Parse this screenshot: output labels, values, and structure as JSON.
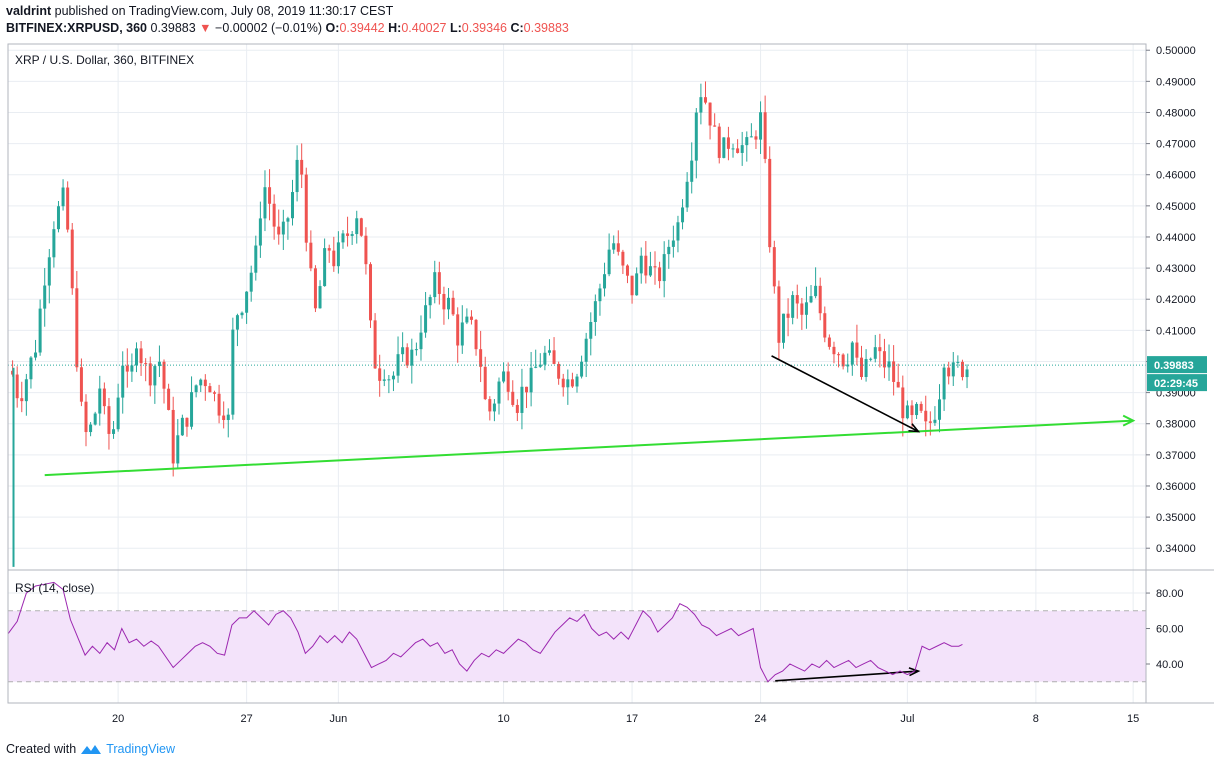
{
  "header": {
    "user": "valdrint",
    "published_text": "published on TradingView.com, July 08, 2019 11:30:17 CEST",
    "symbol_line": "BITFINEX:XRPUSD, 360",
    "last": "0.39883",
    "change": "−0.00002 (−0.01%)",
    "o_label": "O:",
    "o_val": "0.39442",
    "h_label": "H:",
    "h_val": "0.40027",
    "l_label": "L:",
    "l_val": "0.39346",
    "c_label": "C:",
    "c_val": "0.39883"
  },
  "footer": {
    "created_with": "Created with",
    "brand": "TradingView"
  },
  "chart_data": [
    {
      "type": "candlestick",
      "title": "XRP / U.S. Dollar, 360, BITFINEX",
      "y_ticks": [
        "0.50000",
        "0.49000",
        "0.48000",
        "0.47000",
        "0.46000",
        "0.45000",
        "0.44000",
        "0.43000",
        "0.42000",
        "0.41000",
        "0.40000",
        "0.39000",
        "0.38000",
        "0.37000",
        "0.36000",
        "0.35000",
        "0.34000"
      ],
      "ylim": [
        0.333,
        0.502
      ],
      "x_ticks": [
        "20",
        "27",
        "Jun",
        "10",
        "17",
        "24",
        "Jul",
        "8",
        "15"
      ],
      "last_price_label": "0.39883",
      "countdown_label": "02:29:45",
      "last_price": 0.39883,
      "colors": {
        "up": "#26a69a",
        "down": "#ef5350",
        "support": "#33dd33",
        "arrow": "#000000",
        "grid": "#e9edf2"
      },
      "close_path": [
        [
          14.2,
          0.397
        ],
        [
          14.6,
          0.388
        ],
        [
          15.0,
          0.395
        ],
        [
          15.5,
          0.405
        ],
        [
          16.0,
          0.428
        ],
        [
          16.5,
          0.445
        ],
        [
          17.0,
          0.452
        ],
        [
          17.3,
          0.44
        ],
        [
          17.6,
          0.412
        ],
        [
          18.0,
          0.384
        ],
        [
          18.3,
          0.375
        ],
        [
          18.7,
          0.382
        ],
        [
          19.0,
          0.392
        ],
        [
          19.4,
          0.376
        ],
        [
          19.8,
          0.379
        ],
        [
          20.2,
          0.402
        ],
        [
          20.6,
          0.39
        ],
        [
          21.0,
          0.408
        ],
        [
          21.4,
          0.398
        ],
        [
          21.8,
          0.396
        ],
        [
          22.2,
          0.402
        ],
        [
          22.6,
          0.388
        ],
        [
          23.0,
          0.37
        ],
        [
          23.4,
          0.378
        ],
        [
          23.8,
          0.383
        ],
        [
          24.2,
          0.392
        ],
        [
          24.6,
          0.395
        ],
        [
          25.0,
          0.393
        ],
        [
          25.4,
          0.386
        ],
        [
          25.8,
          0.385
        ],
        [
          26.0,
          0.381
        ],
        [
          26.3,
          0.414
        ],
        [
          26.7,
          0.418
        ],
        [
          27.1,
          0.426
        ],
        [
          27.5,
          0.434
        ],
        [
          27.9,
          0.458
        ],
        [
          28.3,
          0.45
        ],
        [
          28.7,
          0.438
        ],
        [
          29.1,
          0.442
        ],
        [
          29.5,
          0.454
        ],
        [
          29.9,
          0.468
        ],
        [
          30.3,
          0.438
        ],
        [
          30.7,
          0.414
        ],
        [
          31.0,
          0.424
        ],
        [
          31.4,
          0.438
        ],
        [
          31.8,
          0.432
        ],
        [
          32.2,
          0.438
        ],
        [
          32.6,
          0.442
        ],
        [
          33.0,
          0.448
        ],
        [
          33.4,
          0.438
        ],
        [
          33.7,
          0.412
        ],
        [
          34.1,
          0.396
        ],
        [
          34.5,
          0.398
        ],
        [
          34.9,
          0.394
        ],
        [
          35.3,
          0.4
        ],
        [
          35.7,
          0.402
        ],
        [
          36.1,
          0.402
        ],
        [
          36.5,
          0.412
        ],
        [
          36.9,
          0.418
        ],
        [
          37.3,
          0.426
        ],
        [
          37.7,
          0.42
        ],
        [
          38.1,
          0.418
        ],
        [
          38.5,
          0.408
        ],
        [
          38.9,
          0.412
        ],
        [
          39.3,
          0.41
        ],
        [
          39.7,
          0.402
        ],
        [
          40.1,
          0.382
        ],
        [
          40.5,
          0.388
        ],
        [
          40.9,
          0.396
        ],
        [
          41.3,
          0.394
        ],
        [
          41.7,
          0.386
        ],
        [
          42.1,
          0.392
        ],
        [
          42.5,
          0.394
        ],
        [
          42.9,
          0.4
        ],
        [
          43.3,
          0.402
        ],
        [
          43.7,
          0.398
        ],
        [
          44.1,
          0.396
        ],
        [
          44.5,
          0.394
        ],
        [
          44.9,
          0.396
        ],
        [
          45.3,
          0.404
        ],
        [
          45.7,
          0.412
        ],
        [
          46.1,
          0.42
        ],
        [
          46.5,
          0.43
        ],
        [
          46.9,
          0.44
        ],
        [
          47.3,
          0.432
        ],
        [
          47.7,
          0.426
        ],
        [
          48.1,
          0.422
        ],
        [
          48.5,
          0.434
        ],
        [
          48.9,
          0.43
        ],
        [
          49.3,
          0.426
        ],
        [
          49.7,
          0.43
        ],
        [
          50.1,
          0.44
        ],
        [
          50.5,
          0.444
        ],
        [
          50.9,
          0.458
        ],
        [
          51.3,
          0.47
        ],
        [
          51.6,
          0.488
        ],
        [
          51.9,
          0.486
        ],
        [
          52.2,
          0.48
        ],
        [
          52.6,
          0.47
        ],
        [
          53.0,
          0.468
        ],
        [
          53.4,
          0.472
        ],
        [
          53.8,
          0.47
        ],
        [
          54.2,
          0.468
        ],
        [
          54.6,
          0.472
        ],
        [
          55.0,
          0.478
        ],
        [
          55.3,
          0.458
        ],
        [
          55.6,
          0.43
        ],
        [
          56.0,
          0.408
        ],
        [
          56.4,
          0.414
        ],
        [
          56.8,
          0.42
        ],
        [
          57.2,
          0.414
        ],
        [
          57.6,
          0.418
        ],
        [
          58.0,
          0.422
        ],
        [
          58.4,
          0.412
        ],
        [
          58.8,
          0.406
        ],
        [
          59.2,
          0.404
        ],
        [
          59.6,
          0.4
        ],
        [
          60.0,
          0.406
        ],
        [
          60.4,
          0.394
        ],
        [
          60.8,
          0.398
        ],
        [
          61.2,
          0.404
        ],
        [
          61.6,
          0.4
        ],
        [
          62.0,
          0.398
        ],
        [
          62.4,
          0.392
        ],
        [
          62.8,
          0.384
        ],
        [
          63.2,
          0.38
        ],
        [
          63.6,
          0.384
        ],
        [
          64.0,
          0.378
        ],
        [
          64.4,
          0.382
        ],
        [
          64.8,
          0.392
        ],
        [
          65.0,
          0.402
        ],
        [
          65.4,
          0.396
        ],
        [
          65.8,
          0.398
        ],
        [
          66.2,
          0.398
        ],
        [
          66.4,
          0.399
        ]
      ],
      "support_line": {
        "from": [
          16.0,
          0.3635
        ],
        "to": [
          66.0,
          0.378
        ],
        "extend_to": [
          75.3,
          0.381
        ]
      },
      "divergence_arrow": {
        "from": [
          55.6,
          0.4018
        ],
        "to": [
          63.6,
          0.3775
        ]
      },
      "annotations": []
    },
    {
      "type": "line",
      "title": "RSI (14, close)",
      "y_ticks": [
        "80.00",
        "60.00",
        "40.00"
      ],
      "ylim": [
        18,
        93
      ],
      "band": [
        30,
        70
      ],
      "colors": {
        "line": "#9c27b0",
        "band": "#f3e3fa",
        "band_edge": "#b0b0b0"
      },
      "values_path": [
        [
          14.0,
          57
        ],
        [
          14.5,
          64
        ],
        [
          15.0,
          80
        ],
        [
          15.5,
          84
        ],
        [
          16.0,
          85
        ],
        [
          16.5,
          86
        ],
        [
          17.0,
          82
        ],
        [
          17.4,
          65
        ],
        [
          17.8,
          55
        ],
        [
          18.2,
          45
        ],
        [
          18.6,
          50
        ],
        [
          19.0,
          46
        ],
        [
          19.4,
          52
        ],
        [
          19.8,
          48
        ],
        [
          20.2,
          60
        ],
        [
          20.6,
          52
        ],
        [
          21.0,
          54
        ],
        [
          21.4,
          50
        ],
        [
          21.8,
          53
        ],
        [
          22.2,
          50
        ],
        [
          22.6,
          44
        ],
        [
          23.0,
          38
        ],
        [
          23.4,
          42
        ],
        [
          23.8,
          46
        ],
        [
          24.2,
          50
        ],
        [
          24.6,
          52
        ],
        [
          25.0,
          50
        ],
        [
          25.4,
          46
        ],
        [
          25.8,
          45
        ],
        [
          26.2,
          62
        ],
        [
          26.6,
          66
        ],
        [
          27.0,
          66
        ],
        [
          27.4,
          70
        ],
        [
          27.8,
          66
        ],
        [
          28.2,
          62
        ],
        [
          28.6,
          68
        ],
        [
          29.0,
          70
        ],
        [
          29.4,
          66
        ],
        [
          29.8,
          58
        ],
        [
          30.2,
          46
        ],
        [
          30.6,
          50
        ],
        [
          31.0,
          56
        ],
        [
          31.4,
          52
        ],
        [
          31.8,
          56
        ],
        [
          32.2,
          52
        ],
        [
          32.6,
          58
        ],
        [
          33.0,
          54
        ],
        [
          33.4,
          46
        ],
        [
          33.8,
          38
        ],
        [
          34.2,
          40
        ],
        [
          34.6,
          42
        ],
        [
          35.0,
          46
        ],
        [
          35.4,
          44
        ],
        [
          35.8,
          48
        ],
        [
          36.2,
          52
        ],
        [
          36.6,
          54
        ],
        [
          37.0,
          50
        ],
        [
          37.4,
          52
        ],
        [
          37.8,
          46
        ],
        [
          38.2,
          48
        ],
        [
          38.6,
          40
        ],
        [
          39.0,
          36
        ],
        [
          39.4,
          42
        ],
        [
          39.8,
          46
        ],
        [
          40.2,
          44
        ],
        [
          40.6,
          48
        ],
        [
          41.0,
          46
        ],
        [
          41.4,
          50
        ],
        [
          41.8,
          54
        ],
        [
          42.2,
          52
        ],
        [
          42.6,
          48
        ],
        [
          43.0,
          46
        ],
        [
          43.4,
          52
        ],
        [
          43.8,
          58
        ],
        [
          44.2,
          62
        ],
        [
          44.6,
          66
        ],
        [
          45.0,
          64
        ],
        [
          45.4,
          68
        ],
        [
          45.8,
          60
        ],
        [
          46.2,
          56
        ],
        [
          46.6,
          58
        ],
        [
          47.0,
          54
        ],
        [
          47.4,
          58
        ],
        [
          47.8,
          54
        ],
        [
          48.2,
          62
        ],
        [
          48.6,
          70
        ],
        [
          49.0,
          66
        ],
        [
          49.4,
          58
        ],
        [
          49.8,
          62
        ],
        [
          50.2,
          66
        ],
        [
          50.6,
          74
        ],
        [
          51.0,
          72
        ],
        [
          51.4,
          68
        ],
        [
          51.8,
          62
        ],
        [
          52.2,
          60
        ],
        [
          52.6,
          56
        ],
        [
          53.0,
          58
        ],
        [
          53.4,
          60
        ],
        [
          53.8,
          56
        ],
        [
          54.2,
          58
        ],
        [
          54.6,
          60
        ],
        [
          55.0,
          38
        ],
        [
          55.4,
          30
        ],
        [
          55.8,
          34
        ],
        [
          56.2,
          36
        ],
        [
          56.6,
          40
        ],
        [
          57.0,
          38
        ],
        [
          57.4,
          36
        ],
        [
          57.8,
          40
        ],
        [
          58.2,
          38
        ],
        [
          58.6,
          42
        ],
        [
          59.0,
          38
        ],
        [
          59.4,
          40
        ],
        [
          59.8,
          42
        ],
        [
          60.2,
          38
        ],
        [
          60.6,
          40
        ],
        [
          61.0,
          42
        ],
        [
          61.4,
          38
        ],
        [
          61.8,
          36
        ],
        [
          62.2,
          34
        ],
        [
          62.6,
          36
        ],
        [
          63.0,
          34
        ],
        [
          63.4,
          36
        ],
        [
          63.8,
          50
        ],
        [
          64.2,
          48
        ],
        [
          64.6,
          50
        ],
        [
          65.0,
          52
        ],
        [
          65.4,
          50
        ],
        [
          65.8,
          50
        ],
        [
          66.0,
          51
        ]
      ],
      "divergence_arrow": {
        "from": [
          55.8,
          30.5
        ],
        "to": [
          63.6,
          36
        ]
      }
    }
  ]
}
